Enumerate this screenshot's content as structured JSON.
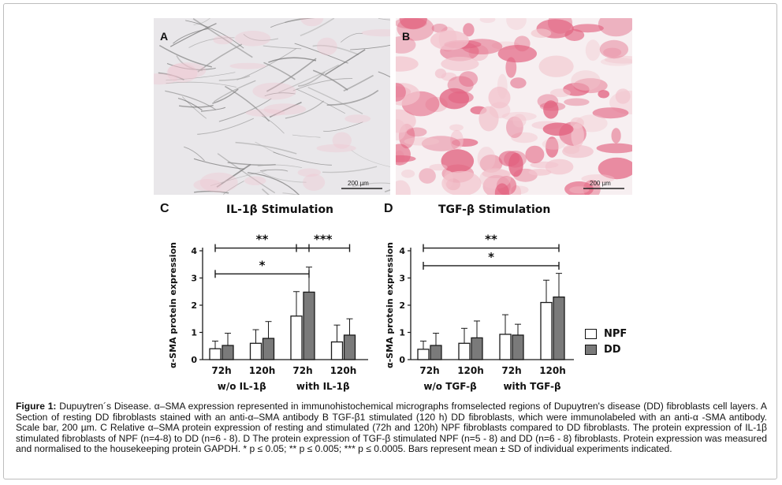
{
  "colors": {
    "npf_fill": "#ffffff",
    "dd_fill": "#7a7a7a",
    "stroke": "#1a1a1a",
    "stain_light": "#f2c4cd",
    "stain_strong": "#e2617f"
  },
  "panels": {
    "a": {
      "letter": "A",
      "scale_bar": "200 µm"
    },
    "b": {
      "letter": "B",
      "scale_bar": "200 µm"
    },
    "c": {
      "letter": "C",
      "title": "IL-1β Stimulation"
    },
    "d": {
      "letter": "D",
      "title": "TGF-β Stimulation"
    }
  },
  "legend": {
    "npf": "NPF",
    "dd": "DD"
  },
  "caption": {
    "label": "Figure 1:",
    "text": "Dupuytren´s Disease. α–SMA expression represented in immunohistochemical micrographs fromselected regions of Dupuytren's disease (DD) fibroblasts cell layers. A Section of resting DD fibroblasts stained with an anti-α–SMA antibody B TGF-β1 stimulated (120 h) DD fibroblasts, which were immunolabeled with an anti-α -SMA antibody. Scale bar, 200 µm. C Relative α–SMA protein expression of resting and stimulated (72h and 120h) NPF fibroblasts compared to DD fibroblasts. The protein expression of IL-1β stimulated fibroblasts of NPF (n=4-8) to DD (n=6 - 8). D The protein expression of TGF-β stimulated NPF (n=5 - 8) and DD (n=6 - 8) fibroblasts. Protein expression was measured and normalised to the housekeeping protein GAPDH. * p ≤ 0.05; ** p ≤ 0.005; *** p ≤ 0.0005. Bars represent mean ± SD of individual experiments indicated."
  },
  "chart_data": [
    {
      "type": "bar",
      "title": "IL-1β Stimulation",
      "ylabel": "α-SMA protein expression",
      "ylim": [
        0,
        4
      ],
      "yticks": [
        "0",
        "1",
        "2",
        "3",
        "4"
      ],
      "categories": [
        "72h",
        "120h",
        "72h",
        "120h"
      ],
      "groups": [
        "w/o IL-1β",
        "with IL-1β"
      ],
      "series": [
        {
          "name": "NPF",
          "values": [
            0.4,
            0.6,
            1.6,
            0.65
          ],
          "sd": [
            0.28,
            0.5,
            0.9,
            0.62
          ]
        },
        {
          "name": "DD",
          "values": [
            0.52,
            0.78,
            2.48,
            0.9
          ],
          "sd": [
            0.45,
            0.62,
            0.92,
            0.6
          ]
        }
      ],
      "significance": [
        {
          "label": "**",
          "from_cat": 0,
          "to_cat": 2,
          "y": 4.1
        },
        {
          "label": "***",
          "from_cat": 2,
          "to_cat": 3,
          "y": 4.1
        },
        {
          "label": "*",
          "from_cat": 0,
          "to_cat": 2,
          "y": 3.15
        }
      ]
    },
    {
      "type": "bar",
      "title": "TGF-β Stimulation",
      "ylabel": "α-SMA protein expression",
      "ylim": [
        0,
        4
      ],
      "yticks": [
        "0",
        "1",
        "2",
        "3",
        "4"
      ],
      "categories": [
        "72h",
        "120h",
        "72h",
        "120h"
      ],
      "groups": [
        "w/o TGF-β",
        "with TGF-β"
      ],
      "series": [
        {
          "name": "NPF",
          "values": [
            0.38,
            0.6,
            0.93,
            2.1
          ],
          "sd": [
            0.3,
            0.55,
            0.72,
            0.82
          ]
        },
        {
          "name": "DD",
          "values": [
            0.52,
            0.8,
            0.9,
            2.3
          ],
          "sd": [
            0.45,
            0.62,
            0.4,
            0.87
          ]
        }
      ],
      "significance": [
        {
          "label": "**",
          "from_cat": 0,
          "to_cat": 3,
          "y": 4.1
        },
        {
          "label": "*",
          "from_cat": 0,
          "to_cat": 3,
          "y": 3.45
        }
      ]
    }
  ]
}
